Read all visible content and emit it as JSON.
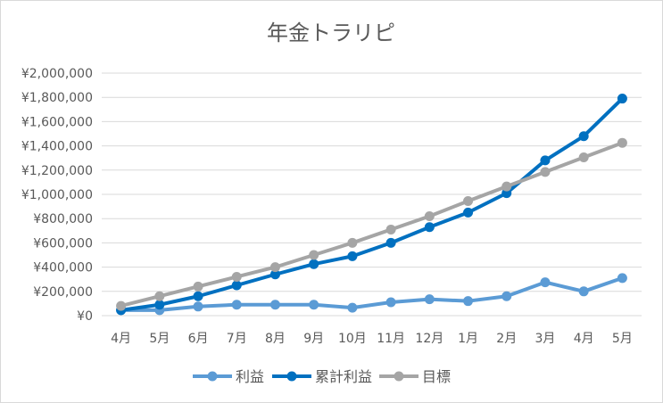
{
  "chart_data": {
    "type": "line",
    "title": "年金トラリピ",
    "categories": [
      "4月",
      "5月",
      "6月",
      "7月",
      "8月",
      "9月",
      "10月",
      "11月",
      "12月",
      "1月",
      "2月",
      "3月",
      "4月",
      "5月"
    ],
    "ylim": [
      0,
      2000000
    ],
    "ytick_step": 200000,
    "ytick_labels": [
      "¥0",
      "¥200,000",
      "¥400,000",
      "¥600,000",
      "¥800,000",
      "¥1,000,000",
      "¥1,200,000",
      "¥1,400,000",
      "¥1,600,000",
      "¥1,800,000",
      "¥2,000,000"
    ],
    "grid": true,
    "legend_position": "bottom",
    "series": [
      {
        "name": "利益",
        "color": "#5b9bd5",
        "values": [
          45000,
          45000,
          75000,
          90000,
          90000,
          90000,
          65000,
          110000,
          135000,
          120000,
          160000,
          275000,
          200000,
          310000
        ]
      },
      {
        "name": "累計利益",
        "color": "#0070c0",
        "values": [
          45000,
          90000,
          160000,
          250000,
          340000,
          425000,
          490000,
          600000,
          730000,
          850000,
          1010000,
          1280000,
          1480000,
          1790000
        ]
      },
      {
        "name": "目標",
        "color": "#a5a5a5",
        "values": [
          80000,
          160000,
          240000,
          320000,
          400000,
          500000,
          600000,
          710000,
          820000,
          945000,
          1065000,
          1185000,
          1305000,
          1425000
        ]
      }
    ]
  }
}
